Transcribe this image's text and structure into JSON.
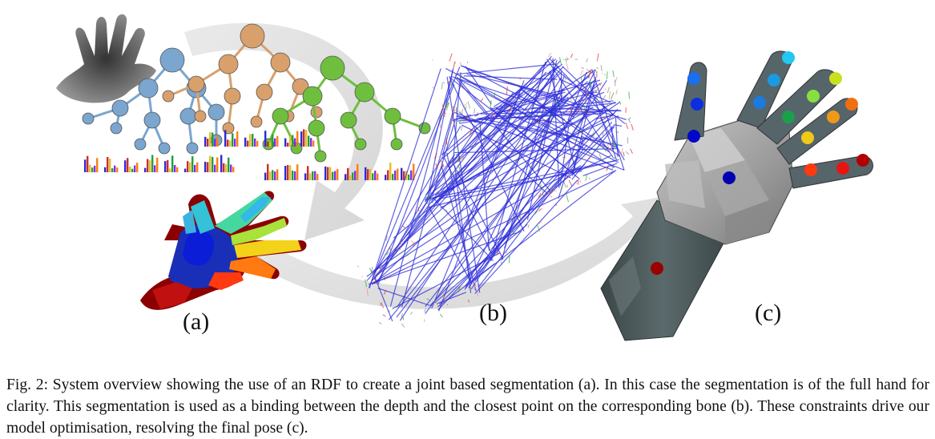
{
  "figure": {
    "panel_labels": [
      "(a)",
      "(b)",
      "(c)"
    ]
  },
  "caption": {
    "text": "Fig. 2: System overview showing the use of an RDF to create a joint based segmentation (a). In this case the segmentation is of the full hand for clarity. This segmentation is used as a binding between the depth and the closest point on the corresponding bone (b). These constraints drive our model optimisation, resolving the final pose (c)."
  },
  "colors": {
    "tree_blue": "#7aa6cf",
    "tree_orange": "#d9a06c",
    "tree_green": "#6fbf3f",
    "wire_blue": "#2c2cd8",
    "mesh_dark": "#4f5c5e",
    "mesh_light": "#b9b9b9",
    "arrow_gray": "#d8d8d8"
  }
}
